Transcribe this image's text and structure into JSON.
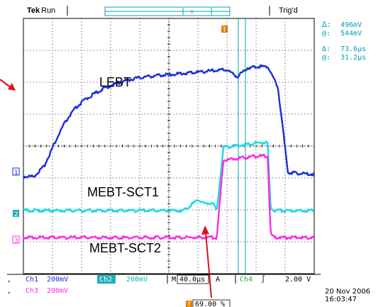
{
  "header": {
    "brand": "Tek",
    "state": "Run",
    "trigger_status": "Trig'd"
  },
  "cursor_readout": {
    "voltage_delta": "496mV",
    "voltage_at": "544mV",
    "time_delta": "73.6µs",
    "time_at": "31.2µs"
  },
  "channel_markers": [
    "1",
    "2",
    "3"
  ],
  "trigger_marker": "T",
  "settings": {
    "ch1": "200mV",
    "ch2": "200mV",
    "ch3": "200mV",
    "timebase": "40.0µs",
    "trigger_mode": "A",
    "trigger_channel": "Ch4",
    "trigger_slope": "∫",
    "trigger_level": "2.00 V",
    "trigger_position": "69.00 %"
  },
  "settings_labels": {
    "ch1": "Ch1",
    "ch2": "Ch2",
    "ch3": "Ch3",
    "timebase_prefix": "M"
  },
  "timestamp": {
    "date": "20 Nov 2006",
    "time": "16:03:47"
  },
  "colors": {
    "ch1": "#1a2fd8",
    "ch2": "#1fd8e6",
    "ch3": "#ff2de0",
    "grid": "#000000",
    "cursor": "#00a0b0",
    "trigger": "#e08000",
    "annotation_arrow": "#e01020"
  },
  "chart_data": {
    "type": "line",
    "title": "",
    "xlabel": "",
    "ylabel": "",
    "x_unit": "µs",
    "x_per_div": 40,
    "x_divisions": 10,
    "y_per_div_mV": 200,
    "grid": true,
    "annotations": [
      "LEBT",
      "MEBT-SCT1",
      "MEBT-SCT2"
    ],
    "series": [
      {
        "name": "LEBT",
        "channel": 1,
        "x": [
          0,
          14,
          28,
          42,
          56,
          70,
          84,
          98,
          112,
          126,
          140,
          154,
          168,
          182,
          196,
          210,
          224,
          238,
          252,
          266,
          280,
          294,
          308,
          322,
          336,
          350,
          364,
          378,
          392,
          400
        ],
        "y": [
          0,
          0,
          60,
          200,
          330,
          420,
          480,
          520,
          555,
          580,
          600,
          615,
          625,
          632,
          638,
          642,
          648,
          654,
          660,
          665,
          670,
          625,
          680,
          690,
          690,
          560,
          25,
          20,
          15,
          15
        ]
      },
      {
        "name": "MEBT-SCT1",
        "channel": 2,
        "x": [
          0,
          40,
          80,
          120,
          160,
          200,
          220,
          232,
          240,
          250,
          260,
          266,
          275,
          300,
          324,
          336,
          340,
          345,
          350,
          360,
          380,
          400
        ],
        "y": [
          0,
          0,
          0,
          0,
          0,
          0,
          0,
          40,
          70,
          40,
          50,
          0,
          395,
          410,
          425,
          425,
          20,
          0,
          0,
          0,
          0,
          0
        ]
      },
      {
        "name": "MEBT-SCT2",
        "channel": 3,
        "x": [
          0,
          40,
          80,
          120,
          160,
          200,
          240,
          266,
          275,
          300,
          324,
          336,
          340,
          345,
          360,
          380,
          400
        ],
        "y": [
          0,
          0,
          0,
          0,
          0,
          0,
          0,
          0,
          485,
          500,
          510,
          510,
          20,
          0,
          0,
          0,
          0
        ]
      }
    ]
  }
}
